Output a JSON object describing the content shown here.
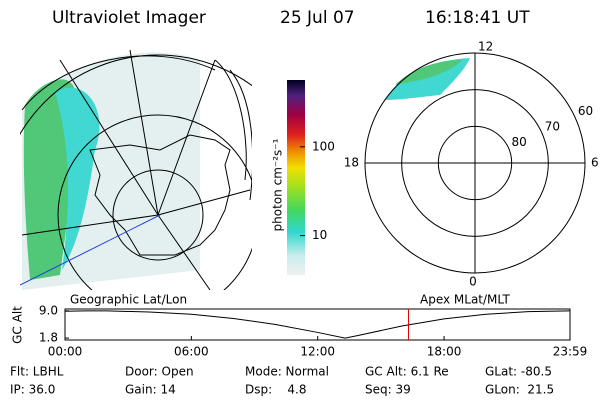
{
  "header": {
    "title": "Ultraviolet Imager",
    "date": "25 Jul 07",
    "time": "16:18:41 UT"
  },
  "colorbar": {
    "label": "photon cm⁻²s⁻¹",
    "log": true,
    "clim": [
      3.6,
      565
    ],
    "ticks": [
      10,
      100
    ]
  },
  "polar_plot": {
    "rlim": [
      90,
      60
    ],
    "rings": [
      80,
      70,
      60
    ],
    "mlt_labels": [
      "12",
      "18",
      "6",
      "0"
    ]
  },
  "timeline": {
    "ylabel": "GC Alt",
    "left_label": "Geographic Lat/Lon",
    "right_label": "Apex MLat/MLT",
    "xlim": [
      0,
      23.98
    ],
    "ylim": [
      1.3,
      9.5
    ],
    "xticks": [
      {
        "value": 0,
        "label": "00:00"
      },
      {
        "value": 6,
        "label": "06:00"
      },
      {
        "value": 12,
        "label": "12:00"
      },
      {
        "value": 18,
        "label": "18:00"
      },
      {
        "value": 23.98,
        "label": "23:59"
      }
    ],
    "yticks": [
      {
        "value": 9,
        "label": "9.0"
      },
      {
        "value": 1.8,
        "label": "1.8"
      }
    ],
    "x": [
      0,
      1,
      2,
      4,
      6,
      8,
      10,
      12,
      13.3,
      14,
      16,
      18,
      20,
      22,
      23.98
    ],
    "values": [
      8.9,
      9.0,
      9.0,
      8.7,
      8.1,
      7.0,
      5.4,
      3.3,
      1.8,
      2.6,
      5.0,
      6.9,
      8.1,
      8.8,
      9.0
    ],
    "current_time": 16.31,
    "current_color": "#e00000"
  },
  "status": [
    [
      "Flt: LBHL",
      "Door: Open",
      "Mode: Normal",
      "GC Alt: 6.1 Re",
      "GLat: -80.5"
    ],
    [
      "IP: 36.0",
      "Gain: 14",
      "Dsp:    4.8",
      "Seq: 39",
      "GLon:  21.5"
    ]
  ]
}
